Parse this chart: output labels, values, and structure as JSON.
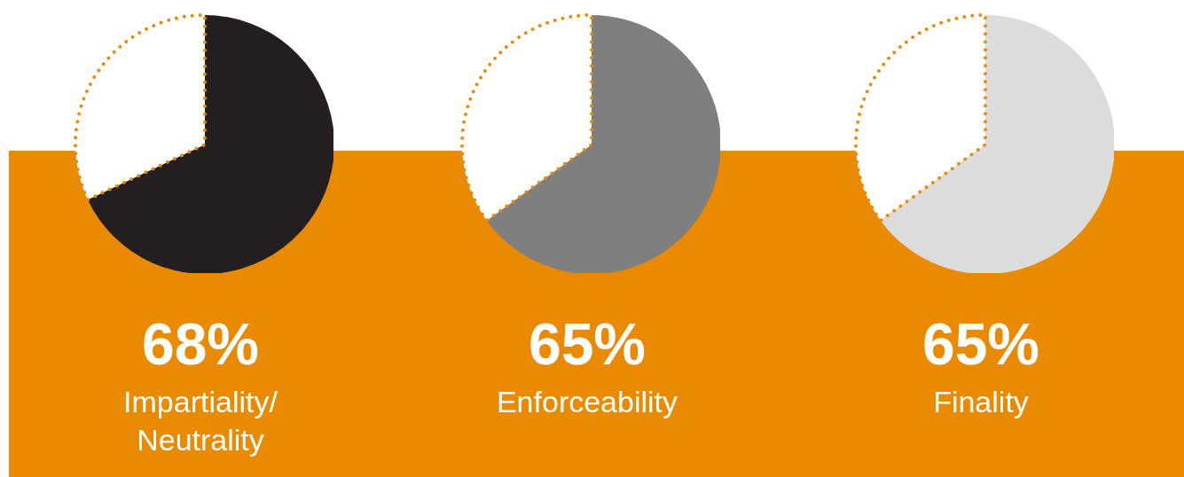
{
  "chart_data": [
    {
      "type": "pie",
      "title": "Impartiality/ Neutrality",
      "categories": [
        null,
        null
      ],
      "values": [
        68,
        32
      ],
      "colors": [
        "#231f20",
        "#ffffff"
      ],
      "value_labels": [
        "68%",
        null
      ]
    },
    {
      "type": "pie",
      "title": "Enforceability",
      "categories": [
        null,
        null
      ],
      "values": [
        65,
        35
      ],
      "colors": [
        "#7f7f7f",
        "#ffffff"
      ],
      "value_labels": [
        "65%",
        null
      ]
    },
    {
      "type": "pie",
      "title": "Finality",
      "categories": [
        null,
        null
      ],
      "values": [
        65,
        35
      ],
      "colors": [
        "#dcdcdc",
        "#ffffff"
      ],
      "value_labels": [
        "65%",
        null
      ]
    }
  ]
}
